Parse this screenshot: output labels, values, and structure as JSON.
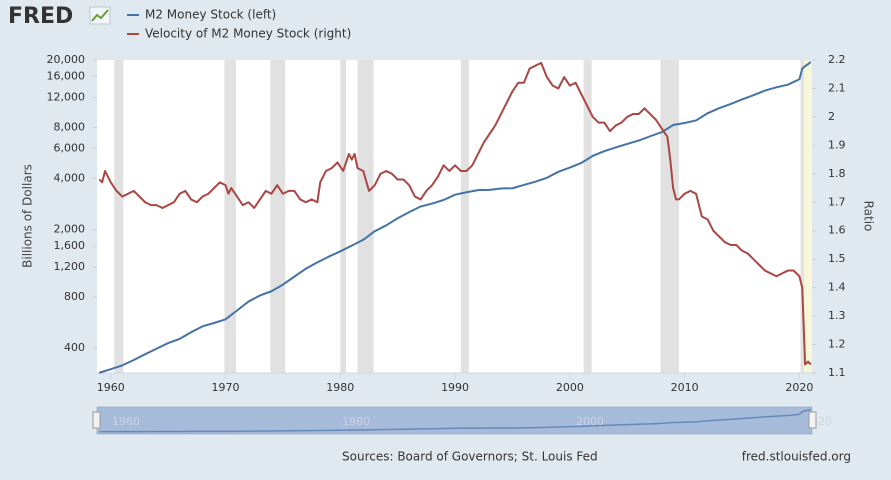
{
  "header": {
    "logo": "FRED"
  },
  "footer": {
    "source": "Sources: Board of Governors; St. Louis Fed",
    "site": "fred.stlouisfed.org"
  },
  "navigator": {
    "labels": [
      "1960",
      "1980",
      "2000",
      "20"
    ]
  },
  "chart_data": {
    "type": "line",
    "ylabel": "Billions of Dollars",
    "y2label": "Ratio",
    "ylog": true,
    "grid": false,
    "xlim": [
      1958.8,
      2021.1
    ],
    "xticks": [
      1960,
      1970,
      1980,
      1990,
      2000,
      2010,
      2020
    ],
    "ylim": [
      285,
      20000
    ],
    "yticks": [
      400,
      800,
      {
        "value": 1200,
        "label": "1,200"
      },
      {
        "value": 1600,
        "label": "1,600"
      },
      {
        "value": 2000,
        "label": "2,000"
      },
      {
        "value": 4000,
        "label": "4,000"
      },
      {
        "value": 6000,
        "label": "6,000"
      },
      {
        "value": 8000,
        "label": "8,000"
      },
      {
        "value": 12000,
        "label": "12,000"
      },
      {
        "value": 16000,
        "label": "16,000"
      },
      {
        "value": 20000,
        "label": "20,000"
      }
    ],
    "y2lim": [
      1.1,
      2.2
    ],
    "y2ticks": [
      1.1,
      1.2,
      1.3,
      1.4,
      1.5,
      1.6,
      1.7,
      1.8,
      1.9,
      2.0,
      2.1,
      2.2
    ],
    "shading_color": "#e1e1e1",
    "shading": [
      [
        1960.3,
        1961.1
      ],
      [
        1969.9,
        1970.9
      ],
      [
        1973.9,
        1975.2
      ],
      [
        1980.0,
        1980.5
      ],
      [
        1981.5,
        1982.9
      ],
      [
        1990.5,
        1991.2
      ],
      [
        2001.2,
        2001.9
      ],
      [
        2007.9,
        2009.5
      ],
      [
        2020.1,
        2020.4
      ]
    ],
    "highlight_color": "#f6f6d8",
    "highlight": [
      2020.4,
      2021.1
    ],
    "series": [
      {
        "name": "M2 Money Stock (left)",
        "color": "#4572a7",
        "x": [
          1959,
          1960,
          1961,
          1962,
          1963,
          1964,
          1965,
          1966,
          1967,
          1968,
          1969,
          1970,
          1971,
          1972,
          1973,
          1974,
          1975,
          1976,
          1977,
          1978,
          1979,
          1980,
          1981,
          1982,
          1983,
          1984,
          1985,
          1986,
          1987,
          1988,
          1989,
          1990,
          1991,
          1992,
          1993,
          1994,
          1995,
          1996,
          1997,
          1998,
          1999,
          2000,
          2001,
          2002,
          2003,
          2004,
          2005,
          2006,
          2007,
          2008,
          2009,
          2010,
          2011,
          2012,
          2013,
          2014,
          2015,
          2016,
          2017,
          2018,
          2019,
          2020,
          2020.25,
          2020.5,
          2020.75,
          2021
        ],
        "values": [
          286,
          300,
          316,
          340,
          368,
          397,
          428,
          453,
          496,
          537,
          562,
          591,
          666,
          752,
          817,
          865,
          947,
          1055,
          1176,
          1281,
          1385,
          1488,
          1607,
          1740,
          1955,
          2118,
          2330,
          2535,
          2735,
          2845,
          2987,
          3211,
          3320,
          3418,
          3428,
          3493,
          3505,
          3665,
          3830,
          4040,
          4380,
          4640,
          4943,
          5440,
          5800,
          6100,
          6400,
          6700,
          7100,
          7500,
          8270,
          8500,
          8800,
          9700,
          10400,
          11000,
          11700,
          12400,
          13200,
          13800,
          14300,
          15400,
          17800,
          18400,
          18900,
          19500
        ]
      },
      {
        "name": "Velocity of M2 Money Stock (right)",
        "color": "#aa4643",
        "axis": "y2",
        "x": [
          1959,
          1959.25,
          1959.5,
          1959.75,
          1960,
          1960.5,
          1961,
          1961.5,
          1962,
          1962.5,
          1963,
          1963.5,
          1964,
          1964.5,
          1965,
          1965.5,
          1966,
          1966.5,
          1967,
          1967.5,
          1968,
          1968.5,
          1969,
          1969.5,
          1970,
          1970.25,
          1970.5,
          1971,
          1971.5,
          1972,
          1972.5,
          1973,
          1973.5,
          1974,
          1974.5,
          1975,
          1975.5,
          1976,
          1976.5,
          1977,
          1977.5,
          1978,
          1978.25,
          1978.75,
          1979.25,
          1979.75,
          1980.25,
          1980.75,
          1981,
          1981.25,
          1981.5,
          1982,
          1982.5,
          1983,
          1983.5,
          1984,
          1984.5,
          1985,
          1985.5,
          1986,
          1986.5,
          1987,
          1987.5,
          1988,
          1988.5,
          1989,
          1989.5,
          1990,
          1990.5,
          1991,
          1991.5,
          1992,
          1992.5,
          1993,
          1993.5,
          1994,
          1994.5,
          1995,
          1995.5,
          1996,
          1996.5,
          1997,
          1997.5,
          1998,
          1998.5,
          1999,
          1999.5,
          2000,
          2000.5,
          2001,
          2001.5,
          2002,
          2002.5,
          2003,
          2003.5,
          2004,
          2004.5,
          2005,
          2005.5,
          2006,
          2006.5,
          2007,
          2007.5,
          2008,
          2008.5,
          2008.75,
          2009,
          2009.25,
          2009.5,
          2010,
          2010.5,
          2011,
          2011.5,
          2012,
          2012.5,
          2013,
          2013.5,
          2014,
          2014.5,
          2015,
          2015.5,
          2016,
          2016.5,
          2017,
          2017.5,
          2018,
          2018.5,
          2019,
          2019.5,
          2020,
          2020.25,
          2020.5,
          2020.75,
          2021
        ],
        "values": [
          1.78,
          1.77,
          1.81,
          1.79,
          1.77,
          1.74,
          1.72,
          1.73,
          1.74,
          1.72,
          1.7,
          1.69,
          1.69,
          1.68,
          1.69,
          1.7,
          1.73,
          1.74,
          1.71,
          1.7,
          1.72,
          1.73,
          1.75,
          1.77,
          1.76,
          1.73,
          1.75,
          1.72,
          1.69,
          1.7,
          1.68,
          1.71,
          1.74,
          1.73,
          1.76,
          1.73,
          1.74,
          1.74,
          1.71,
          1.7,
          1.71,
          1.7,
          1.77,
          1.81,
          1.82,
          1.84,
          1.81,
          1.87,
          1.85,
          1.87,
          1.82,
          1.81,
          1.74,
          1.76,
          1.8,
          1.81,
          1.8,
          1.78,
          1.78,
          1.76,
          1.72,
          1.71,
          1.74,
          1.76,
          1.79,
          1.83,
          1.81,
          1.83,
          1.81,
          1.81,
          1.83,
          1.87,
          1.91,
          1.94,
          1.97,
          2.01,
          2.05,
          2.09,
          2.12,
          2.12,
          2.17,
          2.18,
          2.19,
          2.14,
          2.11,
          2.1,
          2.14,
          2.11,
          2.12,
          2.08,
          2.04,
          2.0,
          1.98,
          1.98,
          1.95,
          1.97,
          1.98,
          2.0,
          2.01,
          2.01,
          2.03,
          2.01,
          1.99,
          1.96,
          1.93,
          1.85,
          1.75,
          1.71,
          1.71,
          1.73,
          1.74,
          1.73,
          1.65,
          1.64,
          1.6,
          1.58,
          1.56,
          1.55,
          1.55,
          1.53,
          1.52,
          1.5,
          1.48,
          1.46,
          1.45,
          1.44,
          1.45,
          1.46,
          1.46,
          1.44,
          1.4,
          1.13,
          1.14,
          1.13
        ]
      }
    ]
  }
}
